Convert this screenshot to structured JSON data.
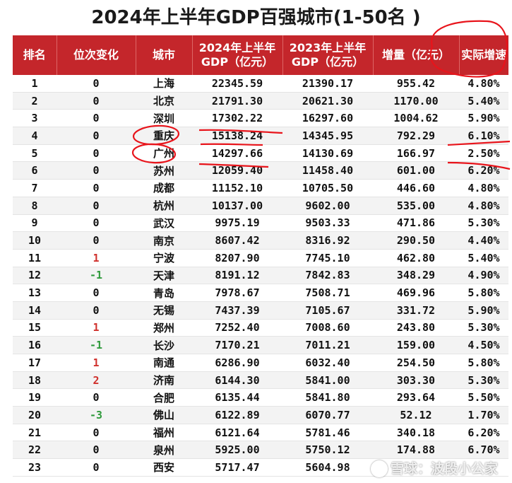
{
  "title": "2024年上半年GDP百强城市(1-50名 )",
  "headers": [
    "排名",
    "位次变化",
    "城市",
    "2024年上半年\nGDP（亿元）",
    "2023年上半年\nGDP（亿元）",
    "增量（亿元）",
    "实际增速"
  ],
  "rows": [
    {
      "rank": "1",
      "change": "0",
      "city": "上海",
      "gdp2024": "22345.59",
      "gdp2023": "21390.17",
      "increase": "955.42",
      "growth": "4.80%"
    },
    {
      "rank": "2",
      "change": "0",
      "city": "北京",
      "gdp2024": "21791.30",
      "gdp2023": "20621.30",
      "increase": "1170.00",
      "growth": "5.40%"
    },
    {
      "rank": "3",
      "change": "0",
      "city": "深圳",
      "gdp2024": "17302.22",
      "gdp2023": "16297.60",
      "increase": "1004.62",
      "growth": "5.90%"
    },
    {
      "rank": "4",
      "change": "0",
      "city": "重庆",
      "gdp2024": "15138.24",
      "gdp2023": "14345.95",
      "increase": "792.29",
      "growth": "6.10%"
    },
    {
      "rank": "5",
      "change": "0",
      "city": "广州",
      "gdp2024": "14297.66",
      "gdp2023": "14130.69",
      "increase": "166.97",
      "growth": "2.50%"
    },
    {
      "rank": "6",
      "change": "0",
      "city": "苏州",
      "gdp2024": "12059.40",
      "gdp2023": "11458.40",
      "increase": "601.00",
      "growth": "6.20%"
    },
    {
      "rank": "7",
      "change": "0",
      "city": "成都",
      "gdp2024": "11152.10",
      "gdp2023": "10705.50",
      "increase": "446.60",
      "growth": "4.80%"
    },
    {
      "rank": "8",
      "change": "0",
      "city": "杭州",
      "gdp2024": "10137.00",
      "gdp2023": "9602.00",
      "increase": "535.00",
      "growth": "4.80%"
    },
    {
      "rank": "9",
      "change": "0",
      "city": "武汉",
      "gdp2024": "9975.19",
      "gdp2023": "9503.33",
      "increase": "471.86",
      "growth": "5.30%"
    },
    {
      "rank": "10",
      "change": "0",
      "city": "南京",
      "gdp2024": "8607.42",
      "gdp2023": "8316.92",
      "increase": "290.50",
      "growth": "4.40%"
    },
    {
      "rank": "11",
      "change": "1",
      "city": "宁波",
      "gdp2024": "8207.90",
      "gdp2023": "7745.10",
      "increase": "462.80",
      "growth": "5.40%"
    },
    {
      "rank": "12",
      "change": "-1",
      "city": "天津",
      "gdp2024": "8191.12",
      "gdp2023": "7842.83",
      "increase": "348.29",
      "growth": "4.90%"
    },
    {
      "rank": "13",
      "change": "0",
      "city": "青岛",
      "gdp2024": "7978.67",
      "gdp2023": "7508.71",
      "increase": "469.96",
      "growth": "5.80%"
    },
    {
      "rank": "14",
      "change": "0",
      "city": "无锡",
      "gdp2024": "7437.39",
      "gdp2023": "7105.67",
      "increase": "331.72",
      "growth": "5.90%"
    },
    {
      "rank": "15",
      "change": "1",
      "city": "郑州",
      "gdp2024": "7252.40",
      "gdp2023": "7008.60",
      "increase": "243.80",
      "growth": "5.30%"
    },
    {
      "rank": "16",
      "change": "-1",
      "city": "长沙",
      "gdp2024": "7170.21",
      "gdp2023": "7011.21",
      "increase": "159.00",
      "growth": "4.50%"
    },
    {
      "rank": "17",
      "change": "1",
      "city": "南通",
      "gdp2024": "6286.90",
      "gdp2023": "6032.40",
      "increase": "254.50",
      "growth": "5.80%"
    },
    {
      "rank": "18",
      "change": "2",
      "city": "济南",
      "gdp2024": "6144.30",
      "gdp2023": "5841.00",
      "increase": "303.30",
      "growth": "5.30%"
    },
    {
      "rank": "19",
      "change": "0",
      "city": "合肥",
      "gdp2024": "6135.44",
      "gdp2023": "5841.80",
      "increase": "293.64",
      "growth": "5.50%"
    },
    {
      "rank": "20",
      "change": "-3",
      "city": "佛山",
      "gdp2024": "6122.89",
      "gdp2023": "6070.77",
      "increase": "52.12",
      "growth": "1.70%"
    },
    {
      "rank": "21",
      "change": "0",
      "city": "福州",
      "gdp2024": "6121.64",
      "gdp2023": "5781.46",
      "increase": "340.18",
      "growth": "6.20%"
    },
    {
      "rank": "22",
      "change": "0",
      "city": "泉州",
      "gdp2024": "5925.00",
      "gdp2023": "5750.12",
      "increase": "174.88",
      "growth": "6.70%"
    },
    {
      "rank": "23",
      "change": "0",
      "city": "西安",
      "gdp2024": "5717.47",
      "gdp2023": "5604.98",
      "increase": "",
      "growth": ""
    }
  ],
  "watermark": "雪球：波段小公家",
  "colors": {
    "header_bg": "#c4262b",
    "up": "#d0312d",
    "down": "#2f9a3c",
    "annotation": "#e8141b"
  }
}
